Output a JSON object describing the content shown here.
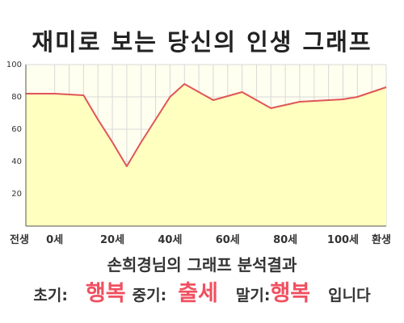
{
  "title": "재미로 보는 당신의 인생 그래프",
  "chart_data": {
    "type": "area",
    "x_labels": [
      "전생",
      "0세",
      "20세",
      "40세",
      "60세",
      "80세",
      "100세",
      "환생"
    ],
    "x_label_positions": [
      -10,
      0,
      20,
      40,
      60,
      80,
      100,
      115
    ],
    "x": [
      -10,
      0,
      5,
      10,
      15,
      20,
      25,
      30,
      35,
      40,
      45,
      50,
      55,
      60,
      65,
      70,
      75,
      80,
      85,
      90,
      95,
      100,
      105,
      110,
      115
    ],
    "values": [
      82,
      82,
      81.5,
      81,
      66,
      52,
      37,
      52,
      66,
      80,
      88,
      83,
      78,
      80.5,
      83,
      78,
      73,
      75,
      77,
      77.5,
      78,
      78.5,
      80,
      83,
      86
    ],
    "ylim": [
      0,
      100
    ],
    "y_ticks": [
      20,
      40,
      60,
      80,
      100
    ],
    "xlim": [
      -10,
      115
    ],
    "grid": true,
    "colors": {
      "line": "#e05555",
      "area": "#ffffc0",
      "background": "#fffff0",
      "grid": "#d8d8d8",
      "axis": "#555555",
      "highlight": "#f05060"
    }
  },
  "summary": {
    "title": "손희경님의 그래프 분석결과",
    "early_label": "초기:",
    "early_value": "행복",
    "middle_label": "중기:",
    "middle_value": "출세",
    "late_label": "말기:",
    "late_value": "행복",
    "ending": "입니다"
  }
}
